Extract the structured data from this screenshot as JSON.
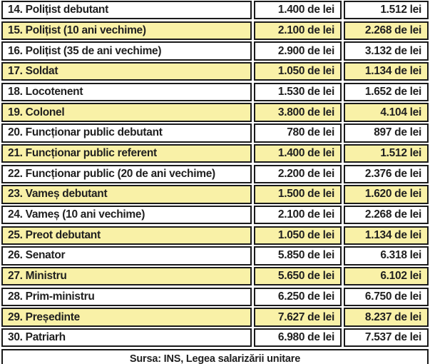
{
  "chart_data": {
    "type": "table",
    "rows": [
      {
        "label": "14. Polițist debutant",
        "old": "1.400 de lei",
        "new": "1.512 lei",
        "highlight": false
      },
      {
        "label": "15. Polițist (10 ani vechime)",
        "old": "2.100 de lei",
        "new": "2.268 de lei",
        "highlight": true
      },
      {
        "label": "16. Polițist (35 de ani vechime)",
        "old": "2.900 de lei",
        "new": "3.132 de lei",
        "highlight": false
      },
      {
        "label": "17. Soldat",
        "old": "1.050 de lei",
        "new": "1.134 de lei",
        "highlight": true
      },
      {
        "label": "18. Locotenent",
        "old": "1.530 de lei",
        "new": "1.652 de lei",
        "highlight": false
      },
      {
        "label": "19. Colonel",
        "old": "3.800 de lei",
        "new": "4.104 lei",
        "highlight": true
      },
      {
        "label": "20. Funcționar public debutant",
        "old": "780 de lei",
        "new": "897 de lei",
        "highlight": false
      },
      {
        "label": "21. Funcționar public referent",
        "old": "1.400 de lei",
        "new": "1.512 lei",
        "highlight": true
      },
      {
        "label": "22. Funcționar public (20 de ani vechime)",
        "old": "2.200 de lei",
        "new": "2.376 de lei",
        "highlight": false
      },
      {
        "label": "23. Vameș debutant",
        "old": "1.500 de lei",
        "new": "1.620 de lei",
        "highlight": true
      },
      {
        "label": "24. Vameș (10 ani vechime)",
        "old": "2.100 de lei",
        "new": "2.268 de lei",
        "highlight": false
      },
      {
        "label": "25. Preot debutant",
        "old": "1.050 de lei",
        "new": "1.134 de lei",
        "highlight": true
      },
      {
        "label": "26. Senator",
        "old": "5.850 de lei",
        "new": "6.318 lei",
        "highlight": false
      },
      {
        "label": "27. Ministru",
        "old": "5.650 de lei",
        "new": "6.102 lei",
        "highlight": true
      },
      {
        "label": "28. Prim-ministru",
        "old": "6.250 de lei",
        "new": "6.750 de lei",
        "highlight": false
      },
      {
        "label": "29. Președinte",
        "old": "7.627 de lei",
        "new": "8.237 de lei",
        "highlight": true
      },
      {
        "label": "30. Patriarh",
        "old": "6.980 de lei",
        "new": "7.537 de lei",
        "highlight": false
      }
    ],
    "footer": "Sursa: INS, Legea salarizării unitare"
  },
  "colors": {
    "row_highlight": "#F9F1A7",
    "border": "#1A1A1A",
    "text": "#1F1F1F",
    "background": "#FFFFFF"
  }
}
